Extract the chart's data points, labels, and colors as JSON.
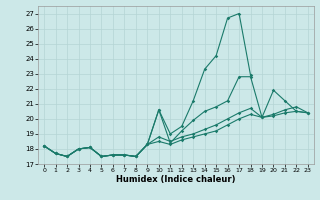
{
  "xlabel": "Humidex (Indice chaleur)",
  "background_color": "#cce8e8",
  "line_color": "#1a7a6a",
  "grid_color": "#b5d5d5",
  "xlim": [
    -0.5,
    23.5
  ],
  "ylim": [
    17,
    27.5
  ],
  "yticks": [
    17,
    18,
    19,
    20,
    21,
    22,
    23,
    24,
    25,
    26,
    27
  ],
  "xticks": [
    0,
    1,
    2,
    3,
    4,
    5,
    6,
    7,
    8,
    9,
    10,
    11,
    12,
    13,
    14,
    15,
    16,
    17,
    18,
    19,
    20,
    21,
    22,
    23
  ],
  "line_spike": [
    18.2,
    17.7,
    17.5,
    18.0,
    18.1,
    17.5,
    17.6,
    17.6,
    17.5,
    18.3,
    20.6,
    19.0,
    19.5,
    21.2,
    23.3,
    24.2,
    26.7,
    27.0,
    22.9,
    null,
    null,
    null,
    null,
    null
  ],
  "line_mid": [
    18.2,
    17.7,
    17.5,
    18.0,
    18.1,
    17.5,
    17.6,
    17.6,
    17.5,
    18.3,
    20.6,
    18.4,
    19.2,
    19.9,
    20.5,
    20.8,
    21.2,
    22.8,
    22.8,
    20.1,
    21.9,
    21.2,
    20.5,
    20.4
  ],
  "line_grad": [
    18.2,
    17.7,
    17.5,
    18.0,
    18.1,
    17.5,
    17.6,
    17.6,
    17.5,
    18.3,
    18.8,
    18.5,
    18.8,
    19.0,
    19.3,
    19.6,
    20.0,
    20.4,
    20.7,
    20.1,
    20.3,
    20.6,
    20.8,
    20.4
  ],
  "line_flat": [
    18.2,
    17.7,
    17.5,
    18.0,
    18.1,
    17.5,
    17.6,
    17.6,
    17.5,
    18.3,
    18.5,
    18.3,
    18.6,
    18.8,
    19.0,
    19.2,
    19.6,
    20.0,
    20.3,
    20.1,
    20.2,
    20.4,
    20.5,
    20.4
  ]
}
